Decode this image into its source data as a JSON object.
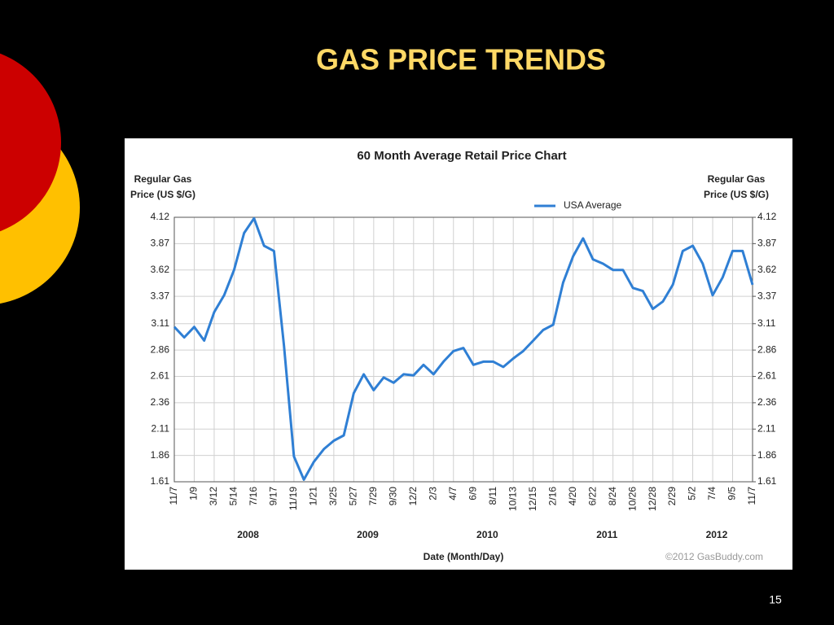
{
  "slide": {
    "title": "GAS PRICE TRENDS",
    "page_number": "15"
  },
  "chart_data": {
    "type": "line",
    "title": "60 Month Average Retail Price Chart",
    "y_label": [
      "Regular Gas",
      "Price (US $/G)"
    ],
    "y2_label": [
      "Regular Gas",
      "Price (US $/G)"
    ],
    "x_label": "Date (Month/Day)",
    "credit": "©2012 GasBuddy.com",
    "year_labels": [
      "2008",
      "2009",
      "2010",
      "2011",
      "2012"
    ],
    "categories": [
      "11/7",
      null,
      "1/9",
      null,
      "3/12",
      null,
      "5/14",
      null,
      "7/16",
      null,
      "9/17",
      null,
      "11/19",
      null,
      "1/21",
      null,
      "3/25",
      null,
      "5/27",
      null,
      "7/29",
      null,
      "9/30",
      null,
      "12/2",
      null,
      "2/3",
      null,
      "4/7",
      null,
      "6/9",
      null,
      "8/11",
      null,
      "10/13",
      null,
      "12/15",
      null,
      "2/16",
      null,
      "4/20",
      null,
      "6/22",
      null,
      "8/24",
      null,
      "10/26",
      null,
      "12/28",
      null,
      "2/29",
      null,
      "5/2",
      null,
      "7/4",
      null,
      "9/5",
      null,
      "11/7"
    ],
    "series": [
      {
        "name": "USA Average",
        "color": "#2f7fd4",
        "values": [
          3.08,
          2.98,
          3.08,
          2.95,
          3.22,
          3.38,
          3.62,
          3.97,
          4.11,
          3.85,
          3.8,
          2.9,
          1.85,
          1.63,
          1.8,
          1.92,
          2.0,
          2.05,
          2.45,
          2.63,
          2.48,
          2.6,
          2.55,
          2.63,
          2.62,
          2.72,
          2.63,
          2.75,
          2.85,
          2.88,
          2.72,
          2.75,
          2.75,
          2.7,
          2.78,
          2.85,
          2.95,
          3.05,
          3.1,
          3.5,
          3.75,
          3.92,
          3.72,
          3.68,
          3.62,
          3.62,
          3.45,
          3.42,
          3.25,
          3.32,
          3.48,
          3.8,
          3.85,
          3.68,
          3.38,
          3.55,
          3.8,
          3.8,
          3.48
        ]
      }
    ],
    "ylim": [
      1.61,
      4.12
    ],
    "yticks": [
      1.61,
      1.86,
      2.11,
      2.36,
      2.61,
      2.86,
      3.11,
      3.37,
      3.62,
      3.87,
      4.12
    ],
    "y2lim": [
      1.61,
      4.12
    ],
    "y2ticks": [
      1.61,
      1.86,
      2.11,
      2.36,
      2.61,
      2.86,
      3.11,
      3.37,
      3.62,
      3.87,
      4.12
    ],
    "grid": true,
    "legend": "top-right"
  }
}
